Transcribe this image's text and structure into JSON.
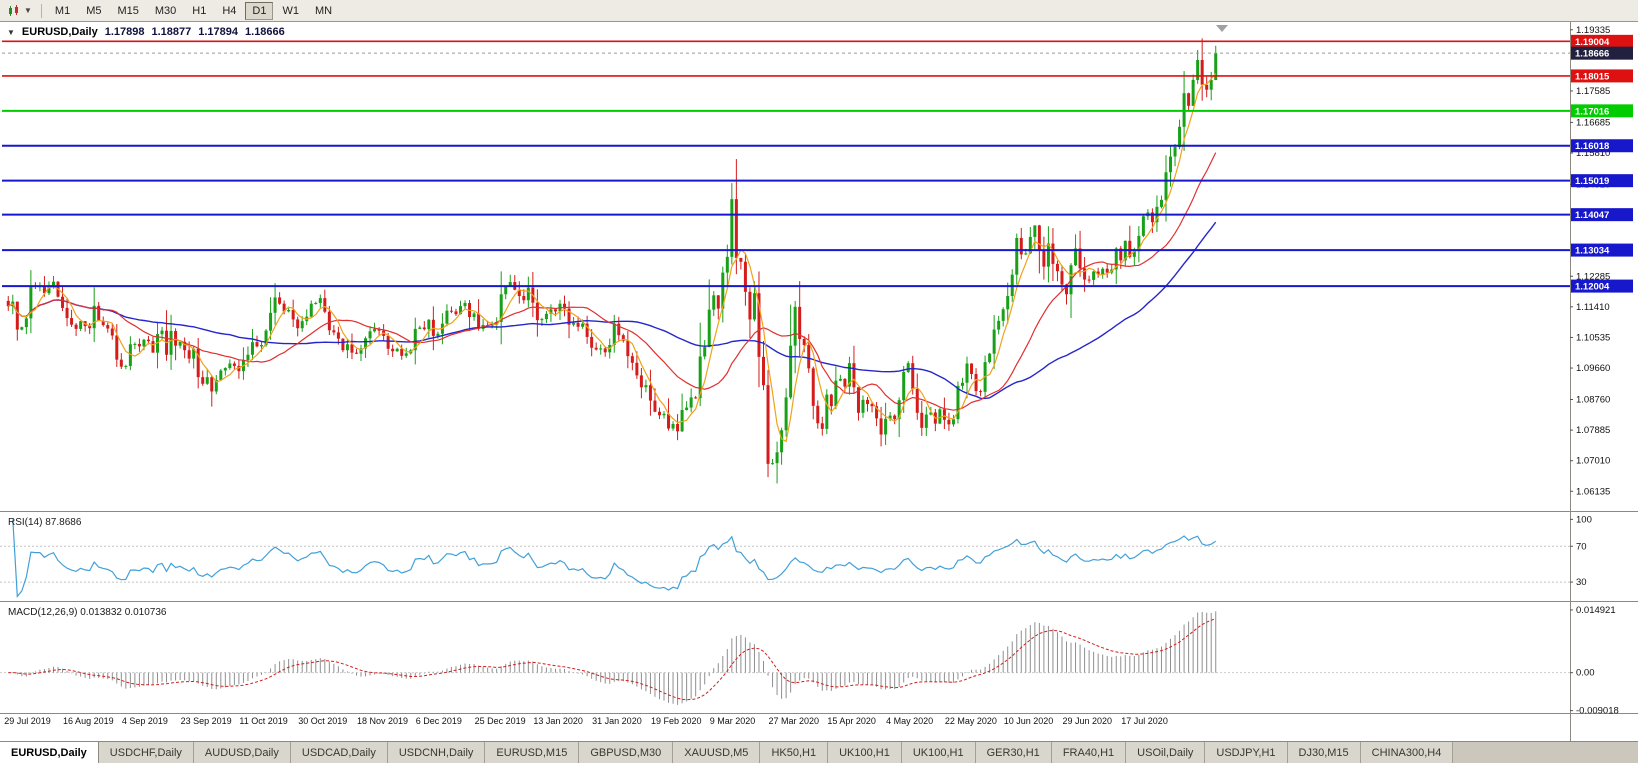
{
  "toolbar": {
    "timeframes": [
      "M1",
      "M5",
      "M15",
      "M30",
      "H1",
      "H4",
      "D1",
      "W1",
      "MN"
    ],
    "active_timeframe": "D1"
  },
  "chart_header": {
    "symbol_label": "EURUSD,Daily",
    "open": "1.17898",
    "high": "1.18877",
    "low": "1.17894",
    "close": "1.18666"
  },
  "panes": {
    "rsi_label": "RSI(14) 87.8686",
    "macd_label": "MACD(12,26,9) 0.013832 0.010736",
    "rsi_axis_labels": [
      "100",
      "70",
      "30"
    ],
    "macd_axis_labels": [
      "0.014921",
      "0.00",
      "-0.009018"
    ]
  },
  "tabs": {
    "active_index": 0,
    "items": [
      "EURUSD,Daily",
      "USDCHF,Daily",
      "AUDUSD,Daily",
      "USDCAD,Daily",
      "USDCNH,Daily",
      "EURUSD,M15",
      "GBPUSD,M30",
      "XAUUSD,M5",
      "HK50,H1",
      "UK100,H1",
      "UK100,H1",
      "GER30,H1",
      "FRA40,H1",
      "USOil,Daily",
      "USDJPY,H1",
      "DJ30,M15",
      "CHINA300,H4"
    ]
  },
  "colors": {
    "up": "#18a018",
    "down": "#d41c1c",
    "ma_fast": "#efa21a",
    "ma_med": "#e03030",
    "ma_slow": "#2626cc",
    "rsi": "#42a0d8",
    "macd_hist": "#8f8f8f",
    "macd_signal": "#d02020",
    "axis_text": "#111111"
  },
  "chart_data": {
    "type": "candlestick",
    "symbol": "EURUSD",
    "timeframe": "Daily",
    "price_range": [
      1.056,
      1.195
    ],
    "first_open": 1.1158,
    "last_candle": {
      "open": 1.17898,
      "high": 1.18877,
      "low": 1.17894,
      "close": 1.18666
    },
    "closes": [
      1.1143,
      1.1156,
      1.1076,
      1.1083,
      1.1108,
      1.1202,
      1.12,
      1.12,
      1.118,
      1.1199,
      1.1213,
      1.117,
      1.1138,
      1.1109,
      1.109,
      1.1078,
      1.11,
      1.1086,
      1.108,
      1.1144,
      1.1101,
      1.1089,
      1.1079,
      1.1059,
      1.099,
      1.097,
      1.0972,
      1.1034,
      1.1035,
      1.1028,
      1.1047,
      1.1043,
      1.101,
      1.1063,
      1.1073,
      1.1004,
      1.1072,
      1.103,
      1.1041,
      1.1017,
      1.0993,
      1.1021,
      1.094,
      1.0921,
      1.094,
      1.0899,
      1.0932,
      1.0959,
      1.0966,
      1.0979,
      1.0972,
      1.0957,
      1.0989,
      1.1004,
      1.104,
      1.1028,
      1.1032,
      1.1073,
      1.1124,
      1.1168,
      1.115,
      1.1128,
      1.1132,
      1.1105,
      1.108,
      1.11,
      1.1113,
      1.115,
      1.1152,
      1.1166,
      1.1127,
      1.1074,
      1.1068,
      1.105,
      1.1017,
      1.1034,
      1.101,
      1.1007,
      1.1022,
      1.1051,
      1.1071,
      1.1078,
      1.1073,
      1.1058,
      1.1021,
      1.1014,
      1.1021,
      1.1001,
      1.1008,
      1.1017,
      1.1078,
      1.1082,
      1.1077,
      1.1104,
      1.1058,
      1.1064,
      1.1093,
      1.113,
      1.1128,
      1.112,
      1.1143,
      1.1152,
      1.1112,
      1.1122,
      1.1078,
      1.1089,
      1.1088,
      1.109,
      1.1098,
      1.1177,
      1.1199,
      1.1212,
      1.119,
      1.1172,
      1.116,
      1.1196,
      1.1153,
      1.1103,
      1.1106,
      1.1121,
      1.1134,
      1.1128,
      1.115,
      1.1136,
      1.109,
      1.1095,
      1.1084,
      1.1093,
      1.1055,
      1.1024,
      1.1019,
      1.1022,
      1.1011,
      1.1032,
      1.1093,
      1.106,
      1.1044,
      1.1,
      1.0981,
      1.0945,
      1.0911,
      1.0917,
      1.0873,
      1.0841,
      1.0831,
      1.0835,
      1.0793,
      1.0806,
      1.0785,
      1.0846,
      1.0853,
      1.0882,
      1.088,
      1.0999,
      1.1026,
      1.1133,
      1.1174,
      1.1136,
      1.1239,
      1.1284,
      1.1449,
      1.1281,
      1.127,
      1.1184,
      1.1105,
      1.118,
      1.0998,
      1.0917,
      1.0692,
      1.0694,
      1.0725,
      1.0788,
      1.0882,
      1.103,
      1.1141,
      1.1049,
      1.1032,
      1.0965,
      1.0858,
      1.0808,
      1.0792,
      1.089,
      1.0857,
      1.093,
      1.0935,
      1.0913,
      1.098,
      1.0911,
      1.0838,
      1.0875,
      1.0863,
      1.0857,
      1.0822,
      1.0776,
      1.0821,
      1.083,
      1.082,
      1.0874,
      1.0955,
      1.098,
      1.0906,
      1.0838,
      1.0795,
      1.0833,
      1.0839,
      1.0807,
      1.0848,
      1.0818,
      1.0805,
      1.082,
      1.0915,
      1.0924,
      1.0979,
      1.0949,
      1.09,
      1.0898,
      1.0983,
      1.1007,
      1.1076,
      1.1101,
      1.1134,
      1.1172,
      1.1233,
      1.1338,
      1.1291,
      1.1294,
      1.1341,
      1.1374,
      1.1301,
      1.1256,
      1.1322,
      1.1264,
      1.1243,
      1.1205,
      1.1177,
      1.126,
      1.1308,
      1.1251,
      1.1219,
      1.1218,
      1.1242,
      1.1234,
      1.125,
      1.1239,
      1.1248,
      1.1308,
      1.1274,
      1.133,
      1.1284,
      1.13,
      1.1344,
      1.14,
      1.1411,
      1.1383,
      1.1427,
      1.1447,
      1.1526,
      1.1571,
      1.1598,
      1.1656,
      1.1752,
      1.1716,
      1.179,
      1.1847,
      1.1776,
      1.1762,
      1.179,
      1.18666
    ],
    "spikes": [
      {
        "i": 160,
        "h": 1.1495
      },
      {
        "i": 168,
        "l": 1.0654
      },
      {
        "i": 170,
        "l": 1.0636
      },
      {
        "i": 264,
        "h": 1.1909
      }
    ],
    "moving_averages": [
      {
        "name": "fast",
        "period": 5
      },
      {
        "name": "medium",
        "period": 20
      },
      {
        "name": "slow",
        "period": 50
      }
    ],
    "horizontal_levels": [
      {
        "label": "1.19004",
        "price": 1.19004,
        "color": "#dd1111",
        "width": 1.6
      },
      {
        "label": "1.18015",
        "price": 1.18015,
        "color": "#dd1111",
        "width": 1.6
      },
      {
        "label": "1.17016",
        "price": 1.17016,
        "color": "#00cc00",
        "width": 2
      },
      {
        "label": "1.16018",
        "price": 1.16018,
        "color": "#1717cc",
        "width": 2
      },
      {
        "label": "1.15019",
        "price": 1.15019,
        "color": "#1717cc",
        "width": 2
      },
      {
        "label": "1.14047",
        "price": 1.14047,
        "color": "#1717cc",
        "width": 2
      },
      {
        "label": "1.13034",
        "price": 1.13034,
        "color": "#1717cc",
        "width": 2
      },
      {
        "label": "1.12004",
        "price": 1.12004,
        "color": "#1717cc",
        "width": 2
      }
    ],
    "current_price": {
      "label": "1.18666",
      "price": 1.18666,
      "badge_color": "#21213f"
    },
    "price_axis_labels": [
      "1.19335",
      "1.17585",
      "1.16685",
      "1.15810",
      "1.14910",
      "1.12285",
      "1.11410",
      "1.10535",
      "1.09660",
      "1.08760",
      "1.07885",
      "1.07010",
      "1.06135"
    ],
    "date_labels": [
      "29 Jul 2019",
      "16 Aug 2019",
      "4 Sep 2019",
      "23 Sep 2019",
      "11 Oct 2019",
      "30 Oct 2019",
      "18 Nov 2019",
      "6 Dec 2019",
      "25 Dec 2019",
      "13 Jan 2020",
      "31 Jan 2020",
      "19 Feb 2020",
      "9 Mar 2020",
      "27 Mar 2020",
      "15 Apr 2020",
      "4 May 2020",
      "22 May 2020",
      "10 Jun 2020",
      "29 Jun 2020",
      "17 Jul 2020"
    ],
    "date_label_bar_step": 13,
    "rsi": {
      "period": 14,
      "last": 87.8686,
      "levels": [
        70,
        30
      ],
      "scale": [
        10,
        106
      ]
    },
    "macd": {
      "fast": 12,
      "slow": 26,
      "signal": 9,
      "last_main": 0.013832,
      "last_signal": 0.010736,
      "axis_max": 0.014921,
      "axis_min": -0.009018
    }
  }
}
